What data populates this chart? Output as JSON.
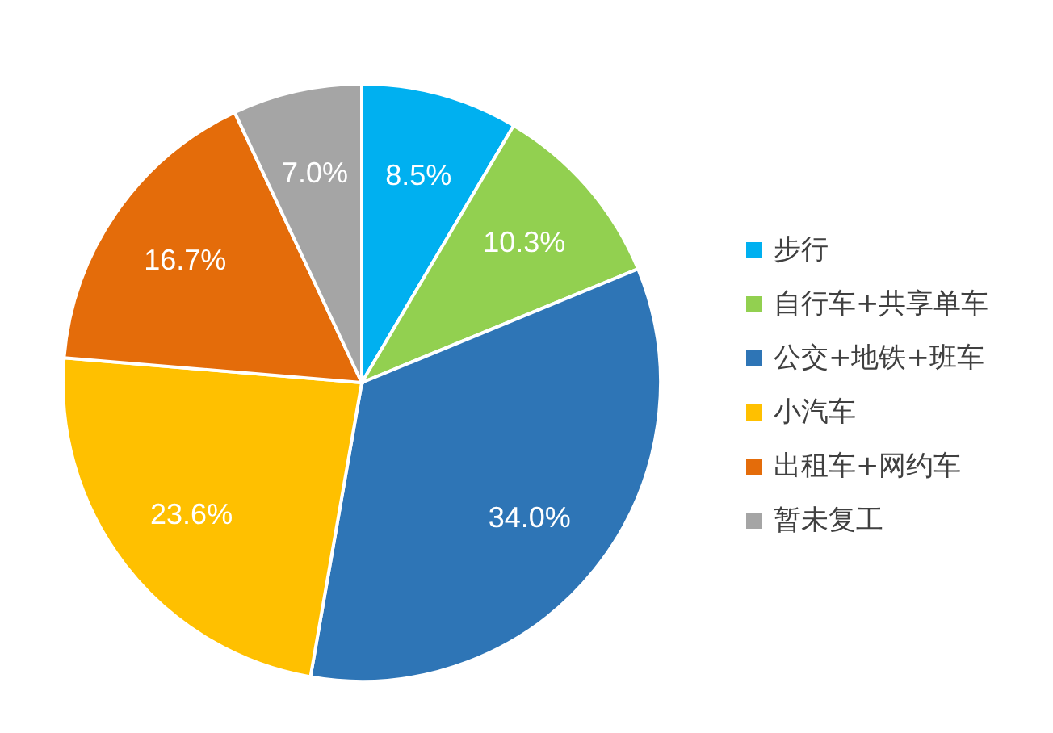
{
  "chart_data": {
    "type": "pie",
    "categories": [
      "步行",
      "自行车+共享单车",
      "公交+地铁+班车",
      "小汽车",
      "出租车+网约车",
      "暂未复工"
    ],
    "values": [
      8.5,
      10.3,
      34.0,
      23.6,
      16.7,
      7.0
    ],
    "colors": [
      "#00b0f0",
      "#92d050",
      "#2e75b6",
      "#ffc000",
      "#e46c0a",
      "#a5a5a5"
    ],
    "value_labels": [
      "8.5%",
      "10.3%",
      "34.0%",
      "23.6%",
      "16.7%",
      "7.0%"
    ],
    "legend": "right"
  }
}
